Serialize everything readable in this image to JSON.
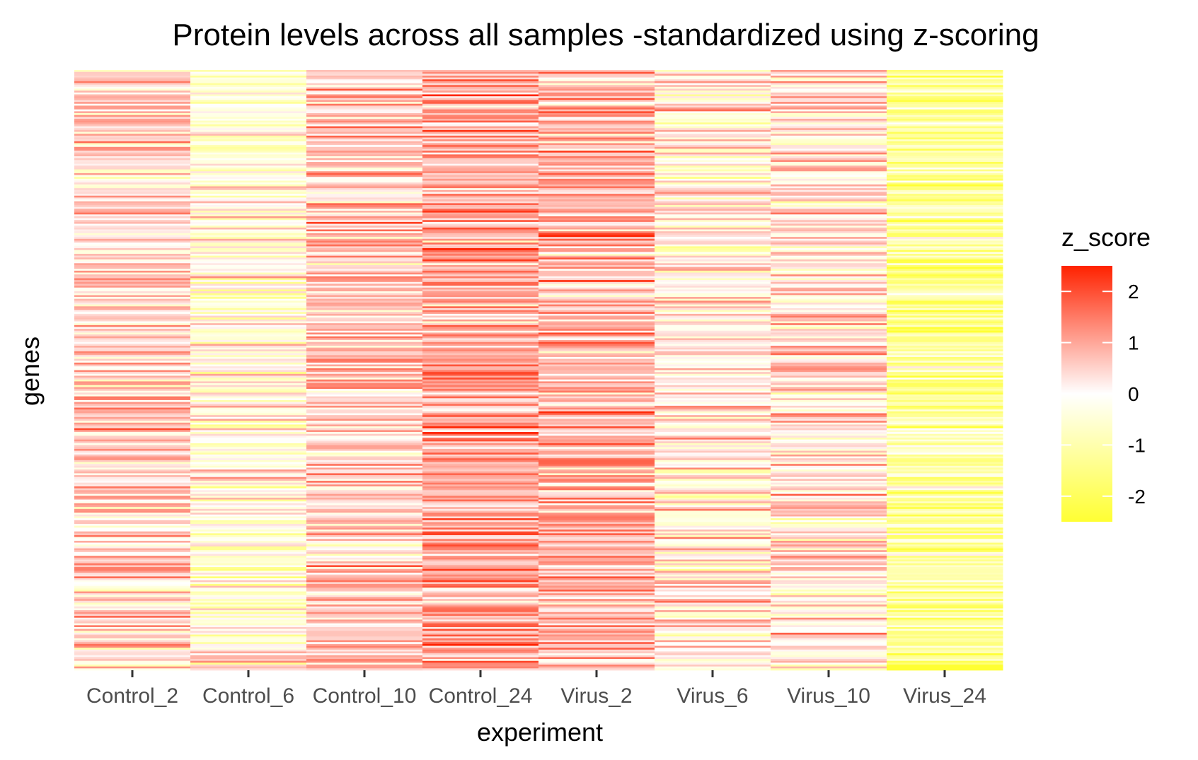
{
  "chart_data": {
    "type": "heatmap",
    "title": "Protein levels across all samples -standardized using z-scoring",
    "xlabel": "experiment",
    "ylabel": "genes",
    "categories": [
      "Control_2",
      "Control_6",
      "Control_10",
      "Control_24",
      "Virus_2",
      "Virus_6",
      "Virus_10",
      "Virus_24"
    ],
    "column_summary": [
      {
        "name": "Control_2",
        "mean_z": 0.4
      },
      {
        "name": "Control_6",
        "mean_z": -0.2
      },
      {
        "name": "Control_10",
        "mean_z": 0.6
      },
      {
        "name": "Control_24",
        "mean_z": 1.0
      },
      {
        "name": "Virus_2",
        "mean_z": 0.8
      },
      {
        "name": "Virus_6",
        "mean_z": 0.1
      },
      {
        "name": "Virus_10",
        "mean_z": 0.3
      },
      {
        "name": "Virus_24",
        "mean_z": -1.2
      }
    ],
    "legend": {
      "title": "z_score",
      "ticks": [
        2,
        1,
        0,
        -1,
        -2
      ],
      "range": [
        -2.5,
        2.5
      ],
      "position": "right",
      "low_color": "#ffff33",
      "mid_color": "#ffffff",
      "high_color": "#ff2200"
    },
    "grid": false
  }
}
